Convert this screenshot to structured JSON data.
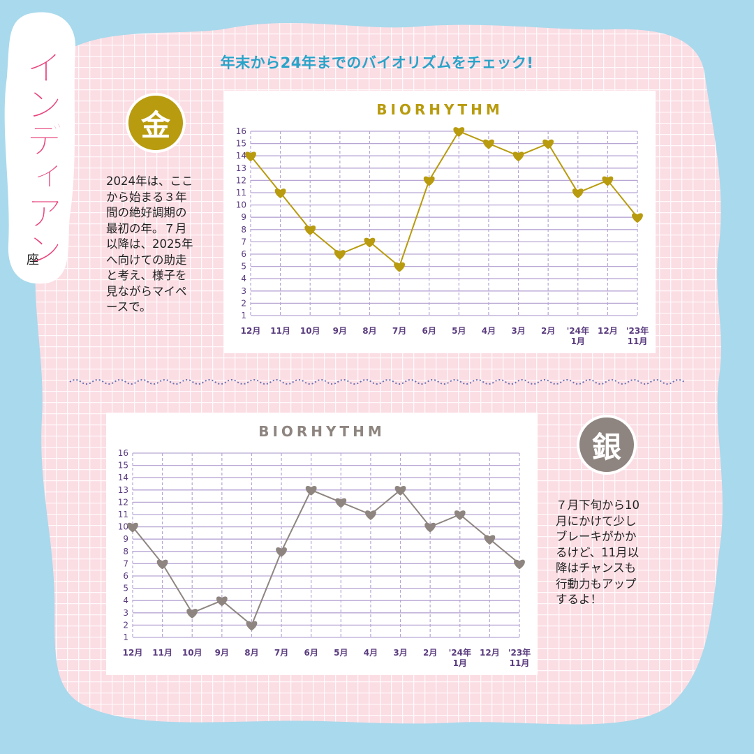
{
  "sign": {
    "name": "インディアン",
    "suffix": "座"
  },
  "headline": "年末から24年までのバイオリズムをチェック!",
  "gold": {
    "medal": "金",
    "description": "2024年は、ここ\nから始まる３年\n間の絶好調期の\n最初の年。７月\n以降は、2025年\nへ向けての助走\nと考え、様子を\n見ながらマイペ\nースで。"
  },
  "silver": {
    "medal": "銀",
    "description": "７月下旬から10\n月にかけて少し\nブレーキがかか\nるけど、11月以\n降はチャンスも\n行動力もアップ\nするよ！"
  },
  "colors": {
    "gold": "#b89b0e",
    "silver": "#8e8580",
    "grid": "#b7a6d4",
    "tick": "#5a3c7e",
    "headline": "#29a3c9",
    "sign": "#e8457f"
  },
  "chart_data": [
    {
      "type": "line",
      "title": "BIORHYTHM",
      "categories": [
        "12月",
        "11月",
        "10月",
        "9月",
        "8月",
        "7月",
        "6月",
        "5月",
        "4月",
        "3月",
        "2月",
        "'24年\n1月",
        "12月",
        "'23年\n11月"
      ],
      "values": [
        14,
        11,
        8,
        6,
        7,
        5,
        12,
        16,
        15,
        14,
        15,
        11,
        12,
        9
      ],
      "ylim": [
        1,
        16
      ],
      "yticks": [
        1,
        2,
        3,
        4,
        5,
        6,
        7,
        8,
        9,
        10,
        11,
        12,
        13,
        14,
        15,
        16
      ],
      "marker": "heart",
      "color": "#b89b0e",
      "grid": true
    },
    {
      "type": "line",
      "title": "BIORHYTHM",
      "categories": [
        "12月",
        "11月",
        "10月",
        "9月",
        "8月",
        "7月",
        "6月",
        "5月",
        "4月",
        "3月",
        "2月",
        "'24年\n1月",
        "12月",
        "'23年\n11月"
      ],
      "values": [
        10,
        7,
        3,
        4,
        2,
        8,
        13,
        12,
        11,
        13,
        10,
        11,
        9,
        7
      ],
      "ylim": [
        1,
        16
      ],
      "yticks": [
        1,
        2,
        3,
        4,
        5,
        6,
        7,
        8,
        9,
        10,
        11,
        12,
        13,
        14,
        15,
        16
      ],
      "marker": "heart",
      "color": "#8e8580",
      "grid": true
    }
  ]
}
